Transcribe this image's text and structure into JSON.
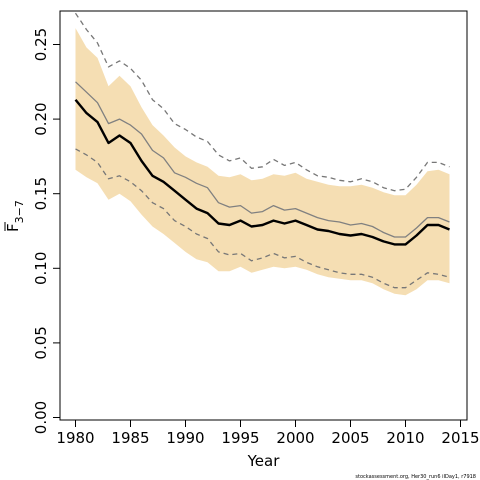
{
  "chart_data": {
    "type": "line",
    "title": "",
    "xlabel": "Year",
    "ylabel_main": "F",
    "ylabel_sub": "3−7",
    "xlim": [
      1980,
      2015
    ],
    "ylim": [
      0,
      0.27
    ],
    "xticks": [
      "1980",
      "1985",
      "1990",
      "1995",
      "2000",
      "2005",
      "2010",
      "2015"
    ],
    "yticks": [
      "0.00",
      "0.05",
      "0.10",
      "0.15",
      "0.20",
      "0.25"
    ],
    "grid": false,
    "legend": "none",
    "x": [
      1980,
      1981,
      1982,
      1983,
      1984,
      1985,
      1986,
      1987,
      1988,
      1989,
      1990,
      1991,
      1992,
      1993,
      1994,
      1995,
      1996,
      1997,
      1998,
      1999,
      2000,
      2001,
      2002,
      2003,
      2004,
      2005,
      2006,
      2007,
      2008,
      2009,
      2010,
      2011,
      2012,
      2013,
      2014
    ],
    "series": [
      {
        "role": "band",
        "color": "#f5deb3",
        "upper": [
          0.261,
          0.248,
          0.241,
          0.222,
          0.229,
          0.222,
          0.208,
          0.196,
          0.189,
          0.181,
          0.175,
          0.171,
          0.168,
          0.162,
          0.161,
          0.163,
          0.159,
          0.16,
          0.163,
          0.162,
          0.164,
          0.16,
          0.158,
          0.156,
          0.155,
          0.155,
          0.156,
          0.154,
          0.151,
          0.149,
          0.149,
          0.156,
          0.165,
          0.166,
          0.163
        ],
        "lower": [
          0.166,
          0.161,
          0.157,
          0.146,
          0.15,
          0.145,
          0.136,
          0.128,
          0.123,
          0.117,
          0.111,
          0.106,
          0.104,
          0.098,
          0.098,
          0.101,
          0.097,
          0.099,
          0.101,
          0.1,
          0.101,
          0.099,
          0.096,
          0.094,
          0.093,
          0.092,
          0.092,
          0.09,
          0.086,
          0.083,
          0.082,
          0.086,
          0.092,
          0.092,
          0.09
        ]
      },
      {
        "role": "upper-dashed",
        "color": "#777777",
        "values": [
          0.271,
          0.26,
          0.251,
          0.235,
          0.239,
          0.234,
          0.226,
          0.213,
          0.207,
          0.197,
          0.193,
          0.188,
          0.185,
          0.176,
          0.172,
          0.174,
          0.167,
          0.168,
          0.173,
          0.169,
          0.171,
          0.166,
          0.162,
          0.161,
          0.159,
          0.158,
          0.16,
          0.158,
          0.154,
          0.152,
          0.153,
          0.161,
          0.171,
          0.171,
          0.168
        ]
      },
      {
        "role": "upper-grey",
        "color": "#808080",
        "values": [
          0.225,
          0.218,
          0.211,
          0.197,
          0.2,
          0.196,
          0.19,
          0.179,
          0.174,
          0.164,
          0.161,
          0.157,
          0.154,
          0.144,
          0.141,
          0.142,
          0.137,
          0.138,
          0.142,
          0.139,
          0.14,
          0.137,
          0.134,
          0.132,
          0.131,
          0.129,
          0.13,
          0.128,
          0.124,
          0.121,
          0.121,
          0.127,
          0.134,
          0.134,
          0.131
        ]
      },
      {
        "role": "median",
        "color": "#000000",
        "values": [
          0.213,
          0.204,
          0.198,
          0.184,
          0.189,
          0.184,
          0.172,
          0.162,
          0.158,
          0.152,
          0.146,
          0.14,
          0.137,
          0.13,
          0.129,
          0.132,
          0.128,
          0.129,
          0.132,
          0.13,
          0.132,
          0.129,
          0.126,
          0.125,
          0.123,
          0.122,
          0.123,
          0.121,
          0.118,
          0.116,
          0.116,
          0.122,
          0.129,
          0.129,
          0.126
        ]
      },
      {
        "role": "lower-grey",
        "color": "#808080",
        "values": null
      },
      {
        "role": "lower-dashed",
        "color": "#777777",
        "values": [
          0.18,
          0.176,
          0.171,
          0.16,
          0.162,
          0.158,
          0.152,
          0.144,
          0.14,
          0.132,
          0.128,
          0.123,
          0.12,
          0.111,
          0.109,
          0.11,
          0.105,
          0.107,
          0.11,
          0.107,
          0.108,
          0.104,
          0.101,
          0.099,
          0.097,
          0.096,
          0.096,
          0.094,
          0.09,
          0.087,
          0.087,
          0.092,
          0.097,
          0.096,
          0.094
        ]
      }
    ]
  },
  "footer": {
    "credit": "stockassessment.org, Her30_run6 iIDay1, r7918"
  }
}
